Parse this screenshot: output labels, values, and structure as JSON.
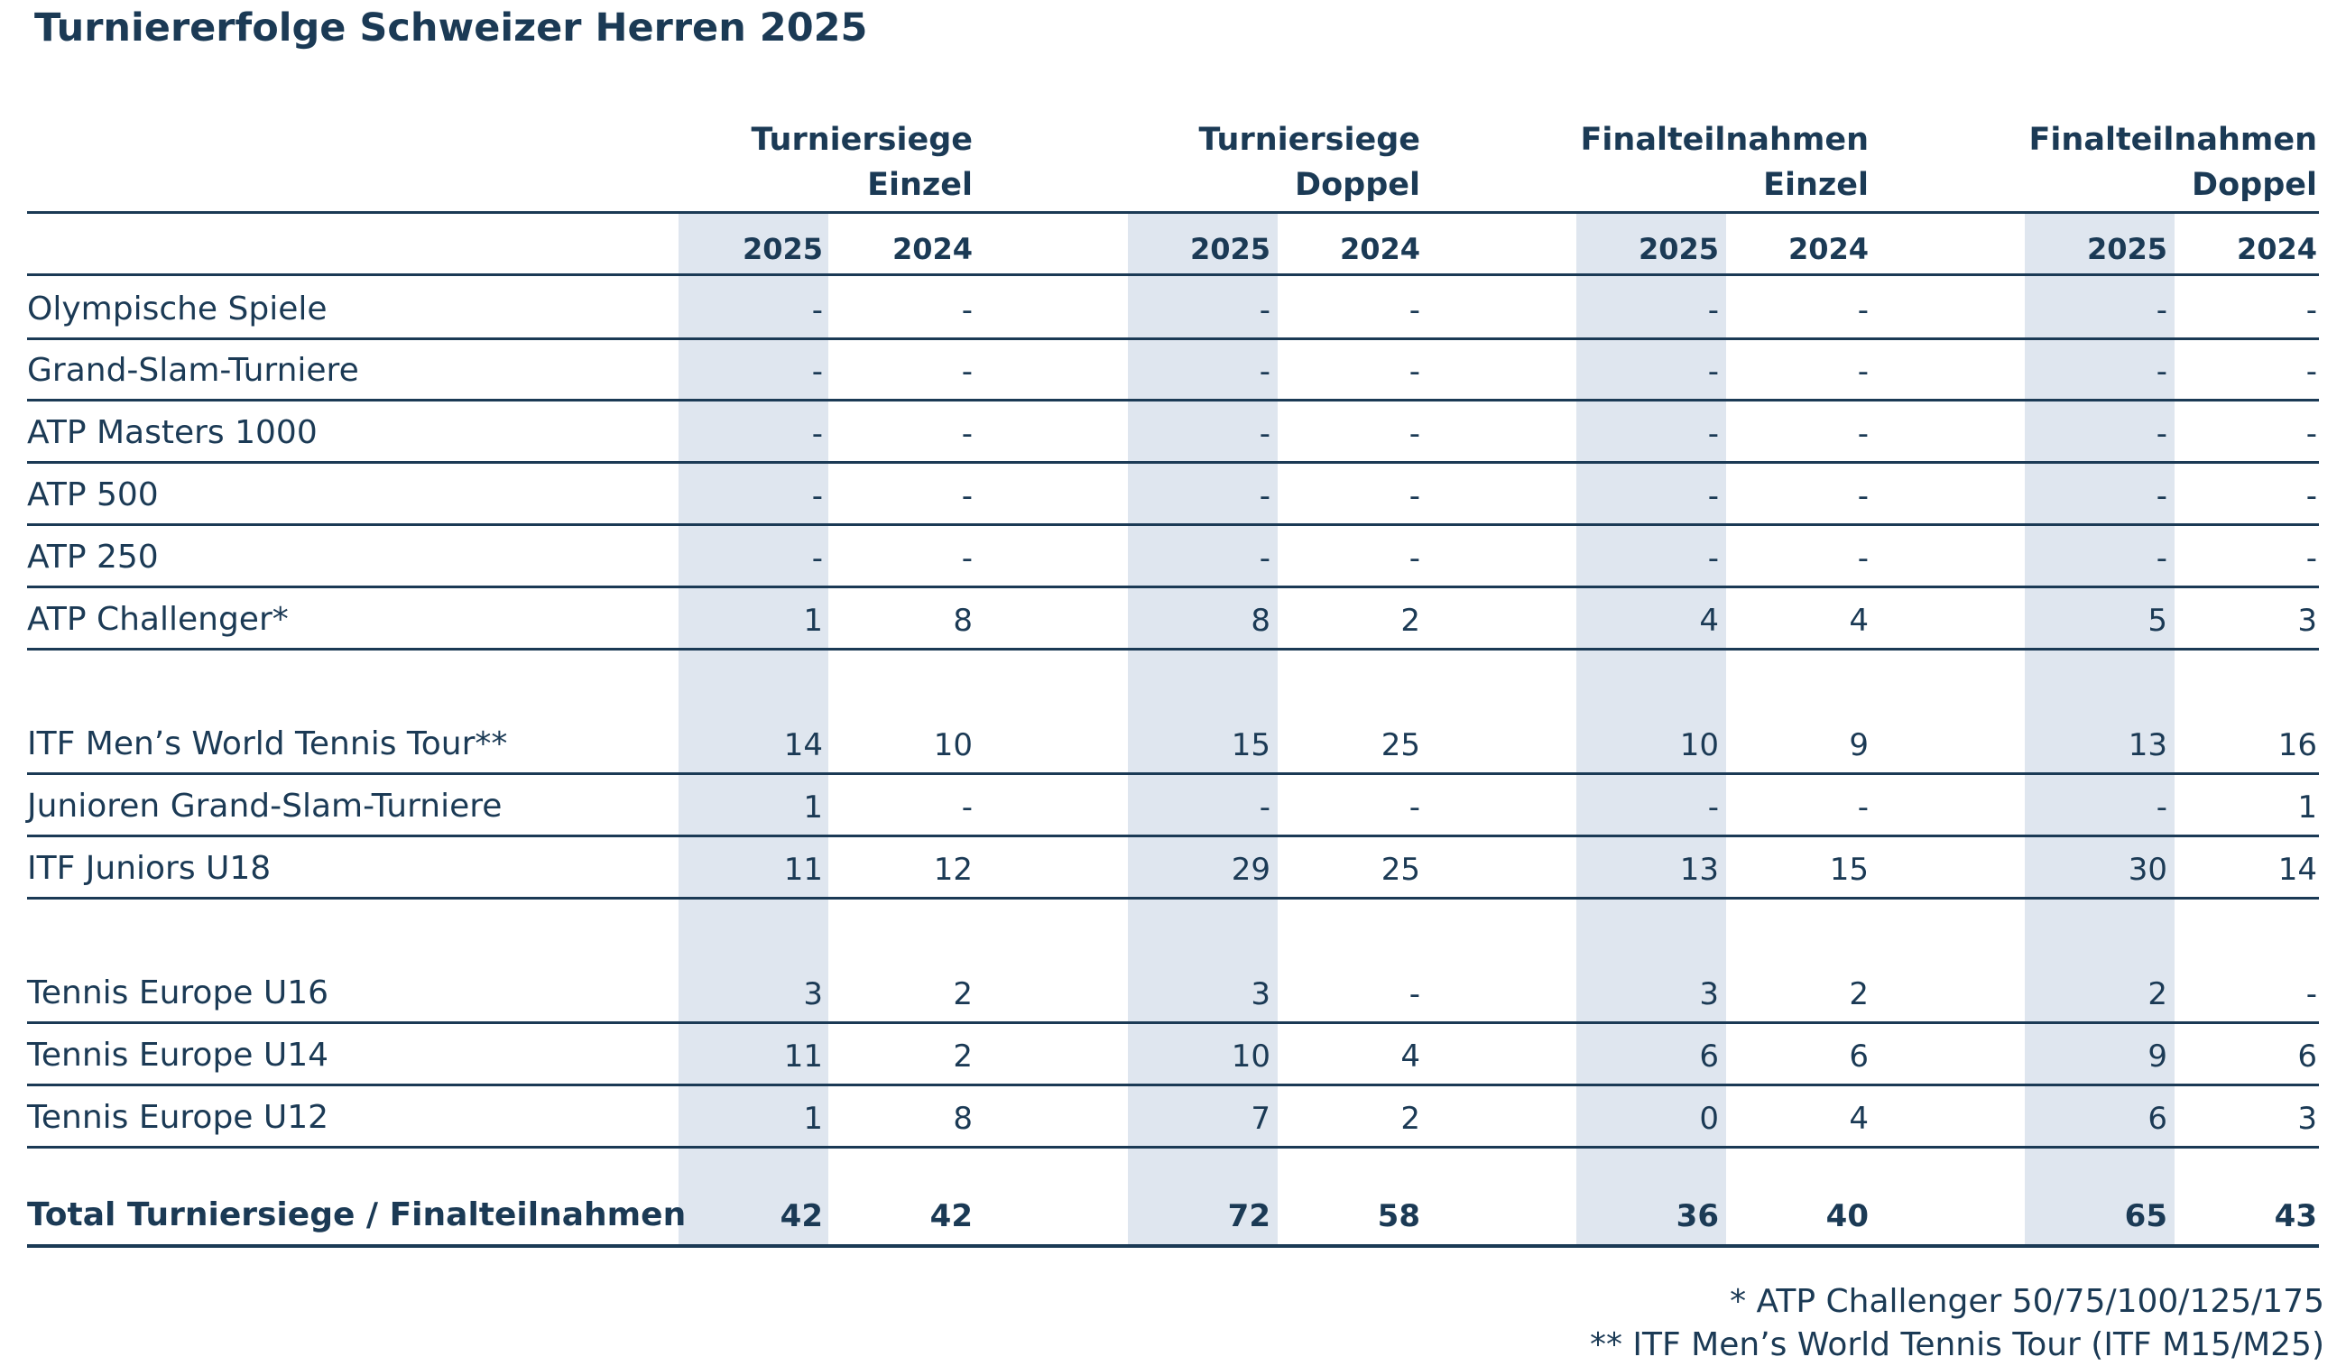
{
  "title": "Turniererfolge Schweizer Herren 2025",
  "groups": [
    {
      "line1": "Turniersiege",
      "line2": "Einzel"
    },
    {
      "line1": "Turniersiege",
      "line2": "Doppel"
    },
    {
      "line1": "Finalteilnahmen",
      "line2": "Einzel"
    },
    {
      "line1": "Finalteilnahmen",
      "line2": "Doppel"
    }
  ],
  "years": [
    "2025",
    "2024"
  ],
  "rows": [
    {
      "label": "Olympische Spiele",
      "values": [
        "-",
        "-",
        "-",
        "-",
        "-",
        "-",
        "-",
        "-"
      ]
    },
    {
      "label": "Grand-Slam-Turniere",
      "values": [
        "-",
        "-",
        "-",
        "-",
        "-",
        "-",
        "-",
        "-"
      ]
    },
    {
      "label": "ATP Masters 1000",
      "values": [
        "-",
        "-",
        "-",
        "-",
        "-",
        "-",
        "-",
        "-"
      ]
    },
    {
      "label": "ATP 500",
      "values": [
        "-",
        "-",
        "-",
        "-",
        "-",
        "-",
        "-",
        "-"
      ]
    },
    {
      "label": "ATP 250",
      "values": [
        "-",
        "-",
        "-",
        "-",
        "-",
        "-",
        "-",
        "-"
      ]
    },
    {
      "label": "ATP Challenger*",
      "values": [
        "1",
        "8",
        "8",
        "2",
        "4",
        "4",
        "5",
        "3"
      ]
    },
    {
      "label": "ITF Men’s World Tennis Tour**",
      "values": [
        "14",
        "10",
        "15",
        "25",
        "10",
        "9",
        "13",
        "16"
      ]
    },
    {
      "label": "Junioren Grand-Slam-Turniere",
      "values": [
        "1",
        "-",
        "-",
        "-",
        "-",
        "-",
        "-",
        "1"
      ]
    },
    {
      "label": "ITF Juniors U18",
      "values": [
        "11",
        "12",
        "29",
        "25",
        "13",
        "15",
        "30",
        "14"
      ]
    },
    {
      "label": "Tennis Europe U16",
      "values": [
        "3",
        "2",
        "3",
        "-",
        "3",
        "2",
        "2",
        "-"
      ]
    },
    {
      "label": "Tennis Europe U14",
      "values": [
        "11",
        "2",
        "10",
        "4",
        "6",
        "6",
        "9",
        "6"
      ]
    },
    {
      "label": "Tennis Europe U12",
      "values": [
        "1",
        "8",
        "7",
        "2",
        "0",
        "4",
        "6",
        "3"
      ]
    }
  ],
  "total": {
    "label": "Total Turniersiege / Finalteilnahmen",
    "values": [
      "42",
      "42",
      "72",
      "58",
      "36",
      "40",
      "65",
      "43"
    ]
  },
  "footnotes": [
    "* ATP Challenger 50/75/100/125/175",
    "** ITF Men’s World Tennis Tour (ITF M15/M25)"
  ],
  "colors": {
    "text": "#1b3a55",
    "band": "#dfe6ef"
  }
}
